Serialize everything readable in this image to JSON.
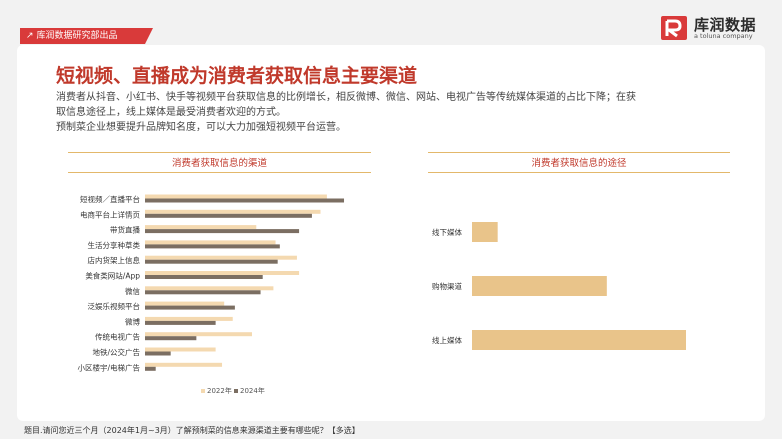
{
  "header": {
    "tag": "库润数据研究部出品",
    "logo_name": "库润数据",
    "logo_sub": "a toluna company"
  },
  "title": "短视频、直播成为消费者获取信息主要渠道",
  "description": [
    "消费者从抖音、小红书、快手等视频平台获取信息的比例增长，相反微博、微信、网站、电视广告等传统媒体渠道的占比下降；在获",
    "取信息途径上，线上媒体是最受消费者欢迎的方式。",
    "预制菜企业想要提升品牌知名度，可以大力加强短视频平台运营。"
  ],
  "colors": {
    "y2022": "#f4d9b0",
    "y2024": "#7b6e62",
    "route": "#e9c48a",
    "accent": "#c0392b",
    "gold": "#e3b86b"
  },
  "chart_data": [
    {
      "type": "bar",
      "orientation": "horizontal",
      "title": "消费者获取信息的渠道",
      "categories": [
        "短视频／直播平台",
        "电商平台上详情页",
        "带货直播",
        "生活分享种草类",
        "店内货架上信息",
        "美食类网站/App",
        "微信",
        "泛娱乐视频平台",
        "微博",
        "传统电视广告",
        "地铁/公交广告",
        "小区楼宇/电梯广告"
      ],
      "series": [
        {
          "name": "2022年",
          "values": [
            0.85,
            0.82,
            0.52,
            0.61,
            0.71,
            0.72,
            0.6,
            0.37,
            0.41,
            0.5,
            0.33,
            0.36
          ]
        },
        {
          "name": "2024年",
          "values": [
            0.93,
            0.78,
            0.72,
            0.63,
            0.62,
            0.55,
            0.54,
            0.42,
            0.33,
            0.24,
            0.12,
            0.05
          ]
        }
      ],
      "legend_position": "bottom",
      "grid": false
    },
    {
      "type": "bar",
      "orientation": "horizontal",
      "title": "消费者获取信息的途径",
      "categories": [
        "线下媒体",
        "购物渠道",
        "线上媒体"
      ],
      "values": [
        0.12,
        0.63,
        1.0
      ],
      "grid": false
    }
  ],
  "footer": "题目.请问您近三个月（2024年1月~3月）了解预制菜的信息来源渠道主要有哪些呢？【多选】"
}
